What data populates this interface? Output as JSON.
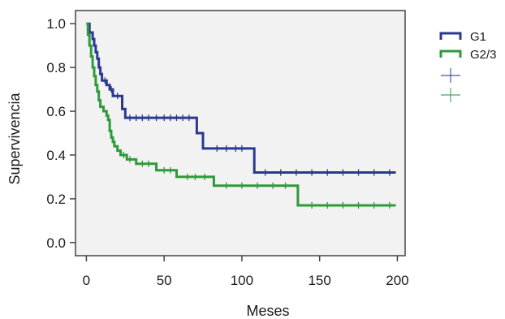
{
  "chart_data": {
    "type": "line",
    "step": true,
    "title": "",
    "xlabel": "Meses",
    "ylabel": "Supervivencia",
    "xlim": [
      -7,
      205
    ],
    "ylim": [
      -0.06,
      1.06
    ],
    "xticks": [
      0,
      50,
      100,
      150,
      200
    ],
    "yticks": [
      0.0,
      0.2,
      0.4,
      0.6,
      0.8,
      1.0
    ],
    "xtick_labels": [
      "0",
      "50",
      "100",
      "150",
      "200"
    ],
    "ytick_labels": [
      "0.0",
      "0.2",
      "0.4",
      "0.6",
      "0.8",
      "1.0"
    ],
    "grid": false,
    "plot_background": "#f2f2f2",
    "legend_position": "right-top",
    "series": [
      {
        "name": "G1",
        "color": "#2b3990",
        "steps": [
          [
            0,
            1.0
          ],
          [
            2,
            0.96
          ],
          [
            4,
            0.93
          ],
          [
            5,
            0.9
          ],
          [
            6,
            0.87
          ],
          [
            7,
            0.84
          ],
          [
            8,
            0.8
          ],
          [
            9,
            0.77
          ],
          [
            10,
            0.74
          ],
          [
            13,
            0.72
          ],
          [
            15,
            0.7
          ],
          [
            17,
            0.67
          ],
          [
            23,
            0.61
          ],
          [
            25,
            0.57
          ],
          [
            71,
            0.5
          ],
          [
            75,
            0.43
          ],
          [
            108,
            0.32
          ],
          [
            199,
            0.32
          ]
        ],
        "censored_x": [
          12,
          16,
          20,
          28,
          32,
          36,
          40,
          45,
          50,
          54,
          58,
          62,
          66,
          84,
          90,
          96,
          100,
          115,
          125,
          135,
          145,
          155,
          165,
          175,
          185,
          195
        ]
      },
      {
        "name": "G2/3",
        "color": "#2e9a3c",
        "steps": [
          [
            0,
            1.0
          ],
          [
            1,
            0.95
          ],
          [
            2,
            0.9
          ],
          [
            3,
            0.85
          ],
          [
            4,
            0.8
          ],
          [
            5,
            0.76
          ],
          [
            6,
            0.72
          ],
          [
            7,
            0.69
          ],
          [
            8,
            0.65
          ],
          [
            9,
            0.62
          ],
          [
            11,
            0.6
          ],
          [
            13,
            0.58
          ],
          [
            14,
            0.56
          ],
          [
            15,
            0.51
          ],
          [
            16,
            0.48
          ],
          [
            17,
            0.46
          ],
          [
            18,
            0.44
          ],
          [
            20,
            0.42
          ],
          [
            22,
            0.4
          ],
          [
            26,
            0.38
          ],
          [
            32,
            0.36
          ],
          [
            45,
            0.33
          ],
          [
            58,
            0.3
          ],
          [
            82,
            0.26
          ],
          [
            136,
            0.17
          ],
          [
            199,
            0.17
          ]
        ],
        "censored_x": [
          24,
          28,
          36,
          40,
          50,
          54,
          65,
          70,
          76,
          90,
          100,
          110,
          120,
          128,
          145,
          155,
          165,
          175,
          185,
          195
        ]
      }
    ],
    "legend_censored_symbols": [
      {
        "color": "#2b3990"
      },
      {
        "color": "#2e9a3c"
      }
    ]
  }
}
